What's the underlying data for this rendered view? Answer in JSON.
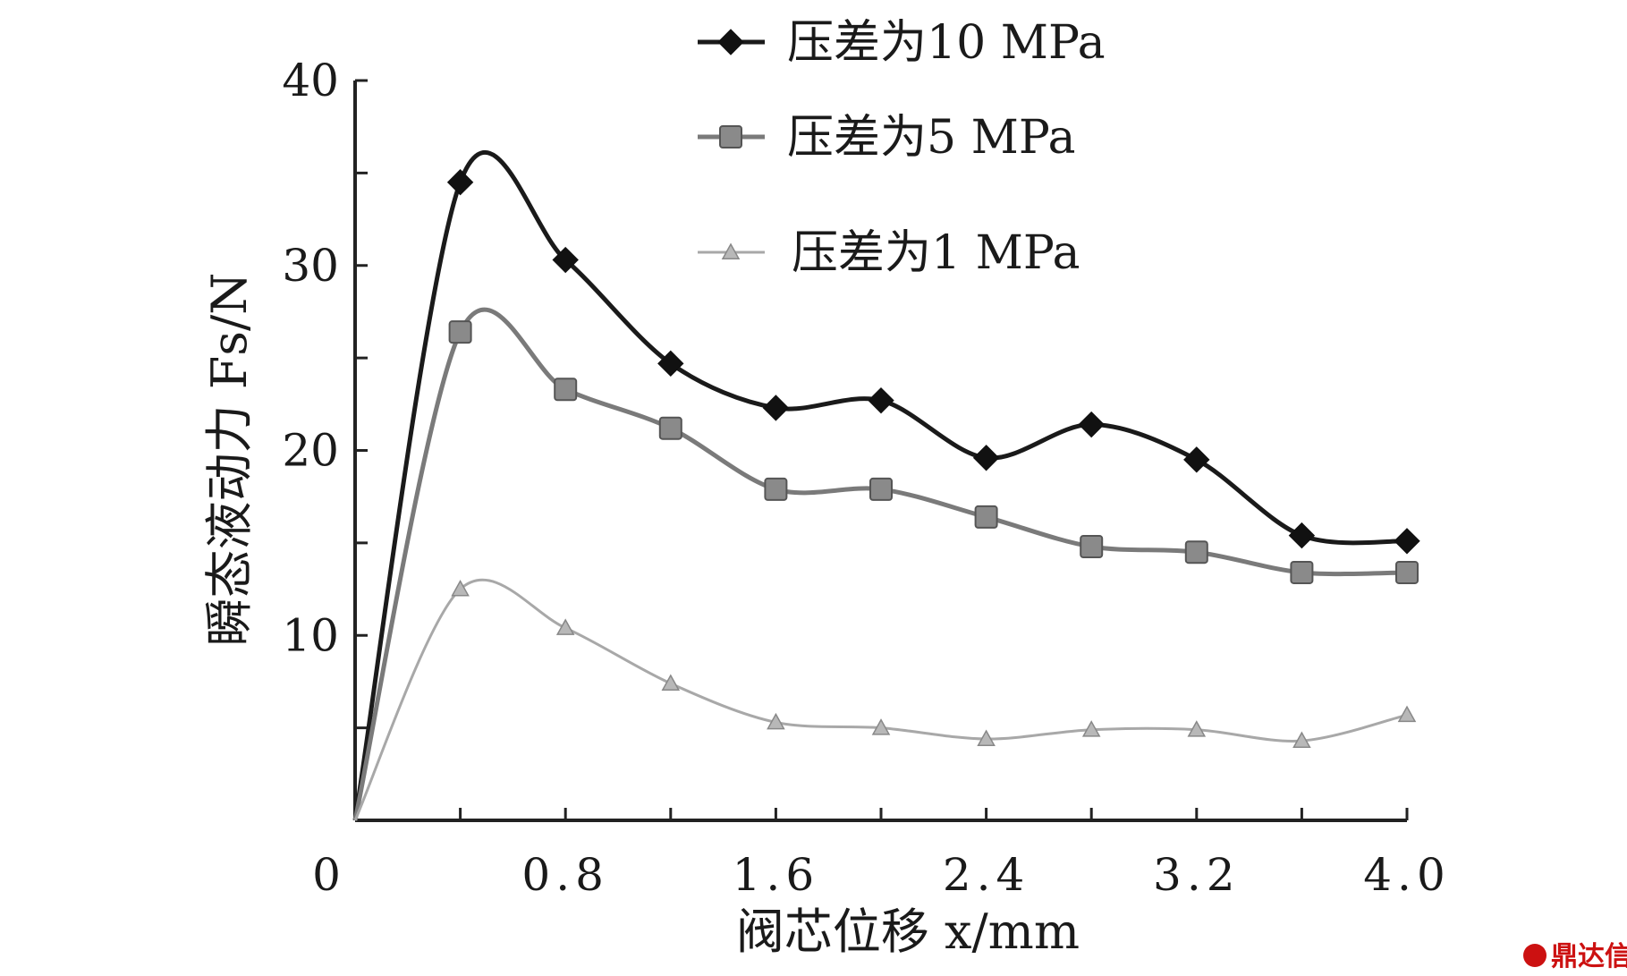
{
  "chart_data": {
    "type": "line",
    "xlabel": "阀芯位移 x/mm",
    "ylabel": "瞬态液动力 Fs/N",
    "xlim": [
      0,
      4.0
    ],
    "ylim": [
      0,
      40
    ],
    "x_ticks": [
      0.8,
      1.6,
      2.4,
      3.2,
      4.0
    ],
    "x_tick_labels": [
      "0.8",
      "1.6",
      "2.4",
      "3.2",
      "4.0"
    ],
    "y_ticks": [
      10,
      20,
      30,
      40
    ],
    "y_tick_labels": [
      "10",
      "20",
      "30",
      "40"
    ],
    "origin_label": "0",
    "grid": false,
    "legend_position": "top-right",
    "series": [
      {
        "name": "压差为10 MPa",
        "color": "#1a1a1a",
        "marker": "diamond",
        "x": [
          0,
          0.4,
          0.8,
          1.2,
          1.6,
          2.0,
          2.4,
          2.8,
          3.2,
          3.6,
          4.0
        ],
        "y": [
          0,
          34.5,
          30.3,
          24.7,
          22.3,
          22.7,
          19.6,
          21.4,
          19.5,
          15.4,
          15.1
        ]
      },
      {
        "name": "压差为5 MPa",
        "color": "#7a7a7a",
        "marker": "square",
        "x": [
          0,
          0.4,
          0.8,
          1.2,
          1.6,
          2.0,
          2.4,
          2.8,
          3.2,
          3.6,
          4.0
        ],
        "y": [
          0,
          26.4,
          23.3,
          21.2,
          17.9,
          17.9,
          16.4,
          14.8,
          14.5,
          13.4,
          13.4
        ]
      },
      {
        "name": "压差为1 MPa",
        "color": "#a8a8a8",
        "marker": "triangle",
        "x": [
          0,
          0.4,
          0.8,
          1.2,
          1.6,
          2.0,
          2.4,
          2.8,
          3.2,
          3.6,
          4.0
        ],
        "y": [
          0,
          12.5,
          10.4,
          7.4,
          5.3,
          5.0,
          4.4,
          4.9,
          4.9,
          4.3,
          5.7
        ]
      }
    ]
  },
  "watermark": {
    "text": "鼎达信"
  }
}
